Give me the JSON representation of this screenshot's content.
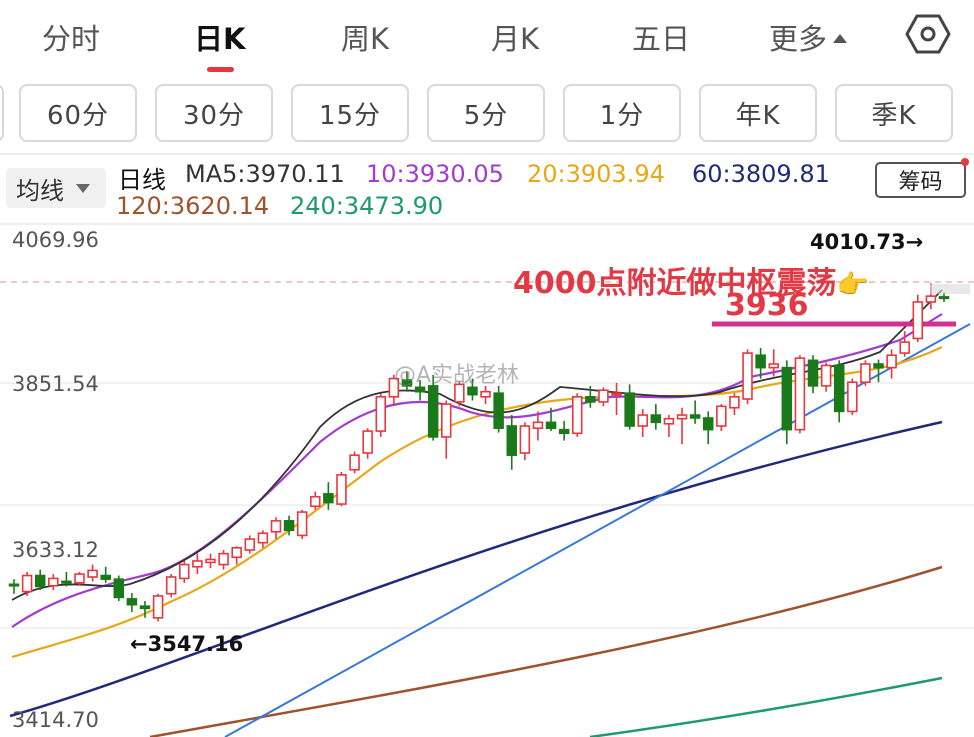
{
  "top_tabs": [
    {
      "label": "分时",
      "active": false
    },
    {
      "label": "日K",
      "active": true
    },
    {
      "label": "周K",
      "active": false
    },
    {
      "label": "月K",
      "active": false
    },
    {
      "label": "五日",
      "active": false
    },
    {
      "label": "更多",
      "active": false
    }
  ],
  "settings_icon": "hexagon-gear-icon",
  "minute_buttons": [
    "60分",
    "30分",
    "15分",
    "5分",
    "1分",
    "年K",
    "季K"
  ],
  "ma_bar": {
    "selector": "均线",
    "period": "日线",
    "ma5": "MA5:3970.11",
    "ma10": "10:3930.05",
    "ma20": "20:3903.94",
    "ma60": "60:3809.81",
    "ma120": "120:3620.14",
    "ma240": "240:3473.90",
    "chips_button": "筹码"
  },
  "colors": {
    "up": "#e8373e",
    "down": "#1a7a1a",
    "ma5": "#333333",
    "ma10": "#a23bd0",
    "ma20": "#e6a817",
    "ma60": "#1f2a7a",
    "ma120": "#a0522d",
    "ma240": "#1f9a6a",
    "trendline": "#3a78d8",
    "annotation": "#e23a45"
  },
  "chart": {
    "price_labels": [
      "4069.96",
      "3851.54",
      "3633.12",
      "3414.70"
    ],
    "high_label": "4010.73→",
    "low_label": "←3547.16",
    "annotation_main": "4000点附近做中枢震荡",
    "annotation_emoji": "👉",
    "annotation_level": "3936",
    "watermark": "@A实战老林"
  },
  "chart_data": {
    "type": "candlestick",
    "ylim": [
      3414.7,
      4069.96
    ],
    "ohlc": [
      [
        3598,
        3605,
        3585,
        3596
      ],
      [
        3588,
        3615,
        3582,
        3610
      ],
      [
        3610,
        3618,
        3590,
        3595
      ],
      [
        3596,
        3612,
        3590,
        3606
      ],
      [
        3602,
        3615,
        3595,
        3600
      ],
      [
        3600,
        3615,
        3596,
        3612
      ],
      [
        3608,
        3625,
        3602,
        3617
      ],
      [
        3610,
        3622,
        3600,
        3605
      ],
      [
        3605,
        3610,
        3575,
        3580
      ],
      [
        3578,
        3586,
        3560,
        3570
      ],
      [
        3568,
        3575,
        3552,
        3565
      ],
      [
        3552,
        3585,
        3547.16,
        3582
      ],
      [
        3585,
        3612,
        3580,
        3608
      ],
      [
        3606,
        3630,
        3600,
        3625
      ],
      [
        3622,
        3640,
        3612,
        3630
      ],
      [
        3628,
        3640,
        3620,
        3632
      ],
      [
        3625,
        3645,
        3618,
        3640
      ],
      [
        3635,
        3650,
        3625,
        3648
      ],
      [
        3645,
        3665,
        3640,
        3660
      ],
      [
        3655,
        3672,
        3648,
        3668
      ],
      [
        3670,
        3690,
        3660,
        3685
      ],
      [
        3685,
        3692,
        3665,
        3672
      ],
      [
        3665,
        3700,
        3660,
        3697
      ],
      [
        3705,
        3725,
        3700,
        3718
      ],
      [
        3722,
        3738,
        3700,
        3710
      ],
      [
        3708,
        3752,
        3705,
        3748
      ],
      [
        3755,
        3780,
        3750,
        3775
      ],
      [
        3778,
        3812,
        3770,
        3808
      ],
      [
        3808,
        3860,
        3800,
        3855
      ],
      [
        3855,
        3885,
        3845,
        3880
      ],
      [
        3878,
        3890,
        3862,
        3870
      ],
      [
        3868,
        3878,
        3850,
        3862
      ],
      [
        3870,
        3885,
        3795,
        3800
      ],
      [
        3800,
        3850,
        3770,
        3845
      ],
      [
        3848,
        3876,
        3842,
        3872
      ],
      [
        3868,
        3880,
        3850,
        3858
      ],
      [
        3855,
        3870,
        3845,
        3862
      ],
      [
        3860,
        3870,
        3806,
        3812
      ],
      [
        3815,
        3830,
        3755,
        3775
      ],
      [
        3778,
        3820,
        3768,
        3815
      ],
      [
        3812,
        3835,
        3795,
        3820
      ],
      [
        3820,
        3840,
        3808,
        3812
      ],
      [
        3810,
        3822,
        3795,
        3805
      ],
      [
        3805,
        3860,
        3800,
        3855
      ],
      [
        3855,
        3870,
        3840,
        3848
      ],
      [
        3848,
        3868,
        3842,
        3864
      ],
      [
        3858,
        3874,
        3830,
        3860
      ],
      [
        3860,
        3872,
        3810,
        3815
      ],
      [
        3815,
        3838,
        3800,
        3830
      ],
      [
        3830,
        3845,
        3810,
        3820
      ],
      [
        3818,
        3830,
        3800,
        3825
      ],
      [
        3825,
        3840,
        3790,
        3830
      ],
      [
        3830,
        3850,
        3818,
        3826
      ],
      [
        3826,
        3835,
        3790,
        3810
      ],
      [
        3815,
        3845,
        3808,
        3842
      ],
      [
        3840,
        3860,
        3830,
        3855
      ],
      [
        3852,
        3920,
        3845,
        3915
      ],
      [
        3912,
        3922,
        3880,
        3895
      ],
      [
        3895,
        3920,
        3883,
        3900
      ],
      [
        3895,
        3905,
        3790,
        3810
      ],
      [
        3810,
        3912,
        3805,
        3908
      ],
      [
        3905,
        3912,
        3860,
        3870
      ],
      [
        3870,
        3902,
        3862,
        3898
      ],
      [
        3898,
        3905,
        3820,
        3835
      ],
      [
        3835,
        3880,
        3830,
        3875
      ],
      [
        3875,
        3905,
        3870,
        3900
      ],
      [
        3900,
        3906,
        3875,
        3895
      ],
      [
        3895,
        3920,
        3880,
        3912
      ],
      [
        3915,
        3945,
        3910,
        3930
      ],
      [
        3935,
        3995,
        3930,
        3985
      ],
      [
        3985,
        4010.73,
        3975,
        3993
      ],
      [
        3992,
        3998,
        3985,
        3990
      ]
    ]
  }
}
